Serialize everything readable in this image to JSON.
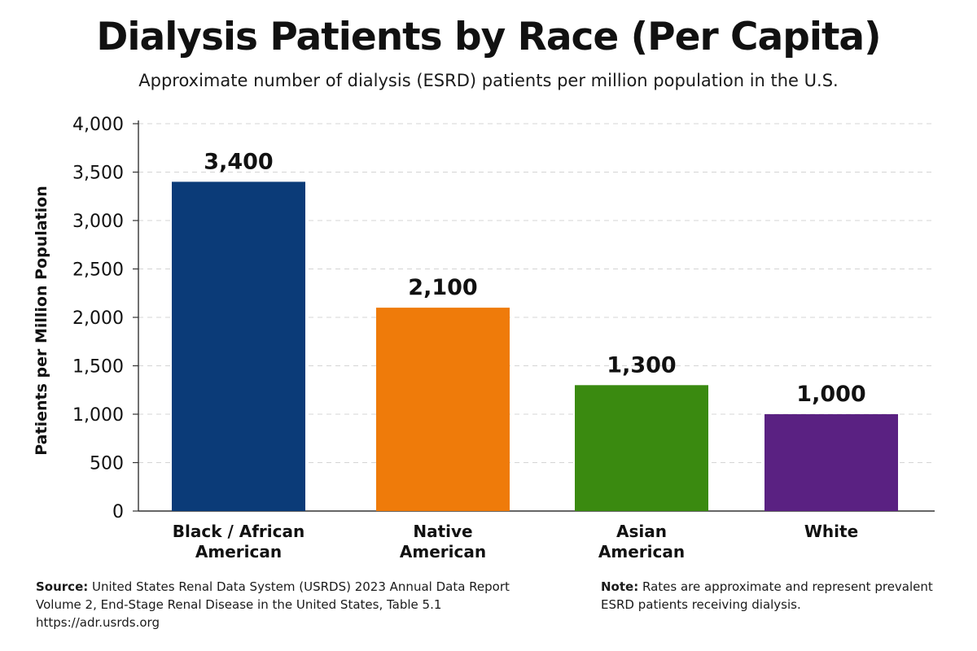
{
  "header": {
    "title": "Dialysis Patients by Race (Per Capita)",
    "subtitle": "Approximate number of dialysis (ESRD) patients per million population in the U.S."
  },
  "chart_data": {
    "type": "bar",
    "title": "Dialysis Patients by Race (Per Capita)",
    "subtitle": "Approximate number of dialysis (ESRD) patients per million population in the U.S.",
    "xlabel": "",
    "ylabel": "Patients per Million Population",
    "ylim": [
      0,
      4000
    ],
    "yticks": [
      0,
      500,
      1000,
      1500,
      2000,
      2500,
      3000,
      3500,
      4000
    ],
    "ytick_labels": [
      "0",
      "500",
      "1,000",
      "1,500",
      "2,000",
      "2,500",
      "3,000",
      "3,500",
      "4,000"
    ],
    "grid": true,
    "categories": [
      [
        "Black / African",
        "American"
      ],
      [
        "Native",
        "American"
      ],
      [
        "Asian",
        "American"
      ],
      [
        "White"
      ]
    ],
    "values": [
      3400,
      2100,
      1300,
      1000
    ],
    "value_labels": [
      "3,400",
      "2,100",
      "1,300",
      "1,000"
    ],
    "colors": [
      "#0b3b78",
      "#ef7b0a",
      "#3a8a10",
      "#5a2182"
    ]
  },
  "footer": {
    "source_label": "Source:",
    "source_lines": [
      " United States Renal Data System (USRDS) 2023 Annual Data Report",
      "Volume 2, End-Stage Renal Disease in the United States, Table 5.1",
      "https://adr.usrds.org"
    ],
    "note_label": "Note:",
    "note_lines": [
      " Rates are approximate and represent prevalent",
      "ESRD patients receiving dialysis."
    ]
  }
}
